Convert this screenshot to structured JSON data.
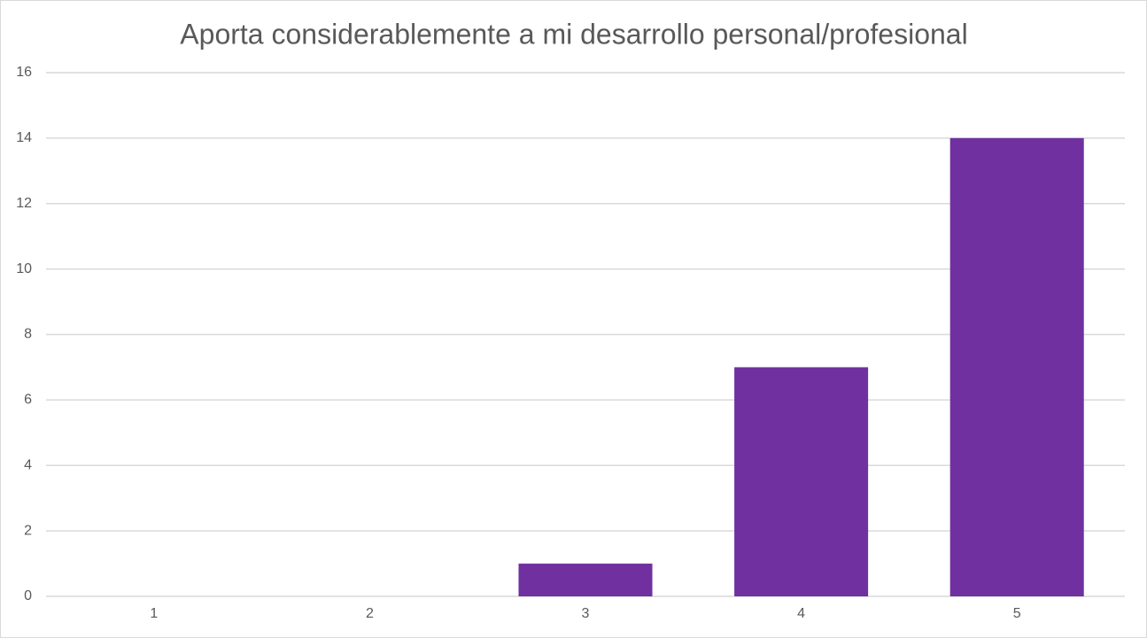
{
  "chart_data": {
    "type": "bar",
    "title": "Aporta considerablemente a mi desarrollo personal/profesional",
    "categories": [
      "1",
      "2",
      "3",
      "4",
      "5"
    ],
    "values": [
      0,
      0,
      1,
      7,
      14
    ],
    "color": "#7030a0",
    "ylim": [
      0,
      16
    ],
    "yticks": [
      0,
      2,
      4,
      6,
      8,
      10,
      12,
      14,
      16
    ],
    "grid": true
  }
}
